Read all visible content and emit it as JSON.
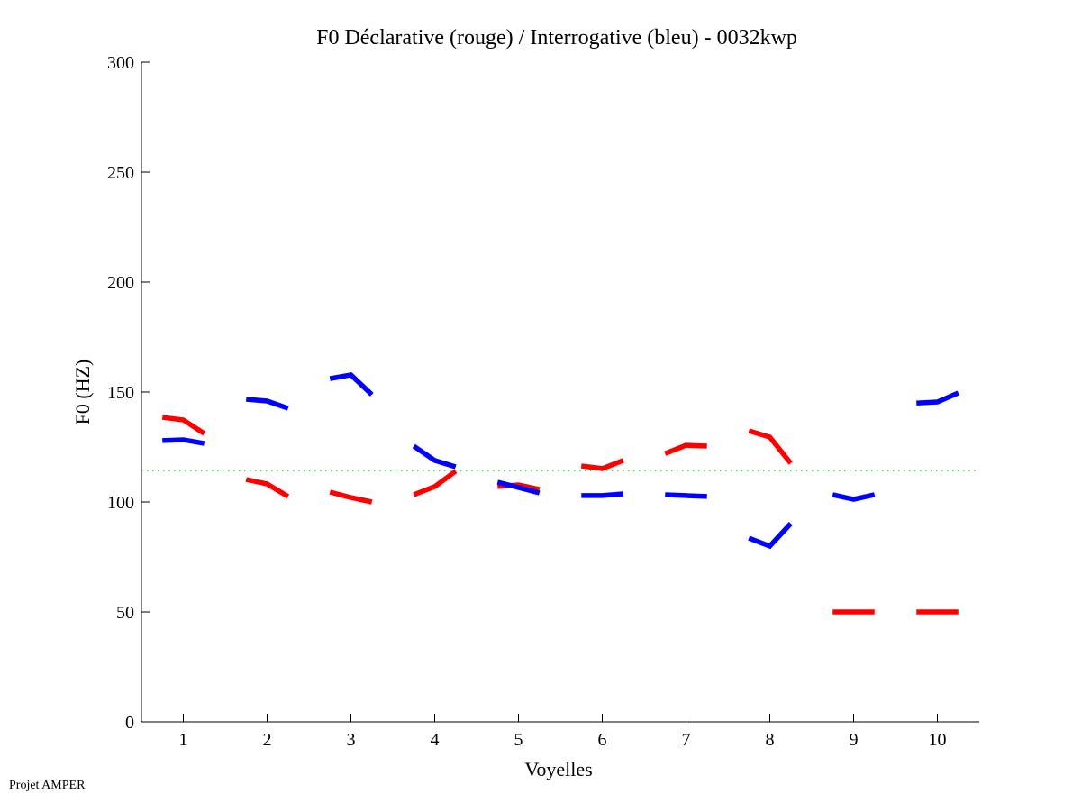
{
  "chart_data": {
    "type": "line",
    "title": "F0 Déclarative (rouge) / Interrogative (bleu) - 0032kwp",
    "xlabel": "Voyelles",
    "ylabel": "F0 (HZ)",
    "xlim": [
      0.5,
      10.5
    ],
    "ylim": [
      0,
      300
    ],
    "xticks": [
      1,
      2,
      3,
      4,
      5,
      6,
      7,
      8,
      9,
      10
    ],
    "xtick_labels": [
      "1",
      "2",
      "3",
      "4",
      "5",
      "6",
      "7",
      "8",
      "9",
      "10"
    ],
    "yticks": [
      0,
      50,
      100,
      150,
      200,
      250,
      300
    ],
    "ytick_labels": [
      "0",
      "50",
      "100",
      "150",
      "200",
      "250",
      "300"
    ],
    "grid": false,
    "point_offsets": [
      -0.25,
      0,
      0.25
    ],
    "reference_line": {
      "y": 114.3,
      "color": "#00cc00",
      "style": "dotted"
    },
    "series": [
      {
        "name": "Déclarative",
        "color": "#ff0000",
        "segments": [
          [
            138.5,
            137.3,
            131.1
          ],
          [
            110.2,
            108.2,
            102.5
          ],
          [
            104.5,
            102,
            100
          ],
          [
            103.3,
            107,
            114
          ],
          [
            107,
            107.8,
            105.7
          ],
          [
            116.4,
            115.2,
            118.9
          ],
          [
            122,
            125.8,
            125.4
          ],
          [
            132.4,
            129.5,
            117.6
          ],
          [
            50,
            50,
            50
          ],
          [
            50,
            50,
            50
          ]
        ]
      },
      {
        "name": "Interrogative",
        "color": "#0000ff",
        "segments": [
          [
            127.9,
            128.3,
            126.6
          ],
          [
            146.7,
            145.9,
            142.6
          ],
          [
            156.1,
            157.8,
            148.8
          ],
          [
            125.4,
            118.9,
            116
          ],
          [
            109,
            106.6,
            104.1
          ],
          [
            102.9,
            102.9,
            103.7
          ],
          [
            103.3,
            102.9,
            102.5
          ],
          [
            83.6,
            79.9,
            90.2
          ],
          [
            103.3,
            101.2,
            103.3
          ],
          [
            145,
            145.5,
            149.6
          ]
        ]
      }
    ]
  },
  "footer": "Projet AMPER"
}
